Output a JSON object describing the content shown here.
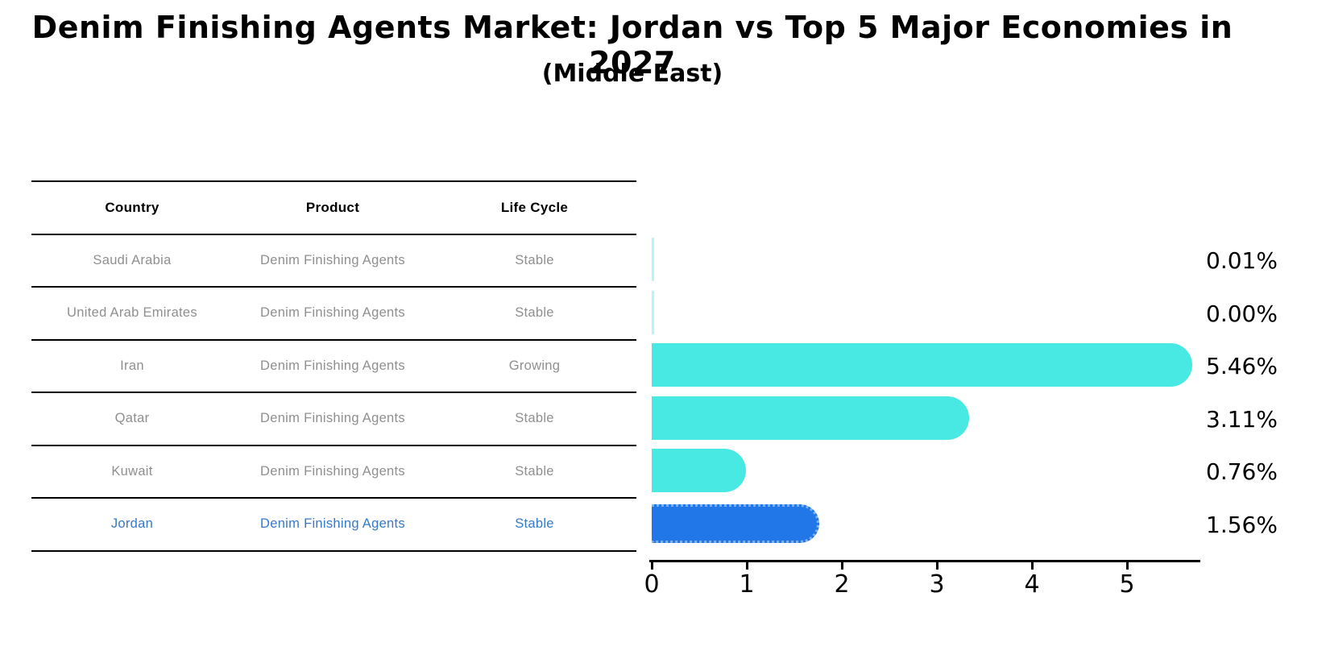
{
  "title": "Denim Finishing Agents Market: Jordan vs Top 5 Major Economies in 2027",
  "subtitle": "(Middle East)",
  "table": {
    "headers": [
      "Country",
      "Product",
      "Life Cycle"
    ],
    "rows": [
      {
        "country": "Saudi Arabia",
        "product": "Denim Finishing Agents",
        "life_cycle": "Stable",
        "highlighted": false
      },
      {
        "country": "United Arab Emirates",
        "product": "Denim Finishing Agents",
        "life_cycle": "Stable",
        "highlighted": false
      },
      {
        "country": "Iran",
        "product": "Denim Finishing Agents",
        "life_cycle": "Growing",
        "highlighted": false
      },
      {
        "country": "Qatar",
        "product": "Denim Finishing Agents",
        "life_cycle": "Stable",
        "highlighted": false
      },
      {
        "country": "Kuwait",
        "product": "Denim Finishing Agents",
        "life_cycle": "Stable",
        "highlighted": false
      },
      {
        "country": "Jordan",
        "product": "Denim Finishing Agents",
        "life_cycle": "Stable",
        "highlighted": true
      }
    ]
  },
  "chart_data": {
    "type": "bar",
    "orientation": "horizontal",
    "title": "Denim Finishing Agents Market: Jordan vs Top 5 Major Economies in 2027",
    "subtitle": "(Middle East)",
    "categories": [
      "Saudi Arabia",
      "United Arab Emirates",
      "Iran",
      "Qatar",
      "Kuwait",
      "Jordan"
    ],
    "values": [
      0.01,
      0.0,
      5.46,
      3.11,
      0.76,
      1.56
    ],
    "value_labels": [
      "0.01%",
      "0.00%",
      "5.46%",
      "3.11%",
      "0.76%",
      "1.56%"
    ],
    "xticks": [
      "0",
      "1",
      "2",
      "3",
      "4",
      "5"
    ],
    "xlim": [
      0,
      5.77
    ],
    "grid": false,
    "legend": false,
    "highlight_category": "Jordan",
    "colors": {
      "default_bar": "#48e8e3",
      "highlight_bar": "#2176e8",
      "highlight_border": "#7eb2f1",
      "highlight_text": "#3579c8",
      "table_text": "#8f8f8f",
      "axis": "#000000"
    }
  }
}
